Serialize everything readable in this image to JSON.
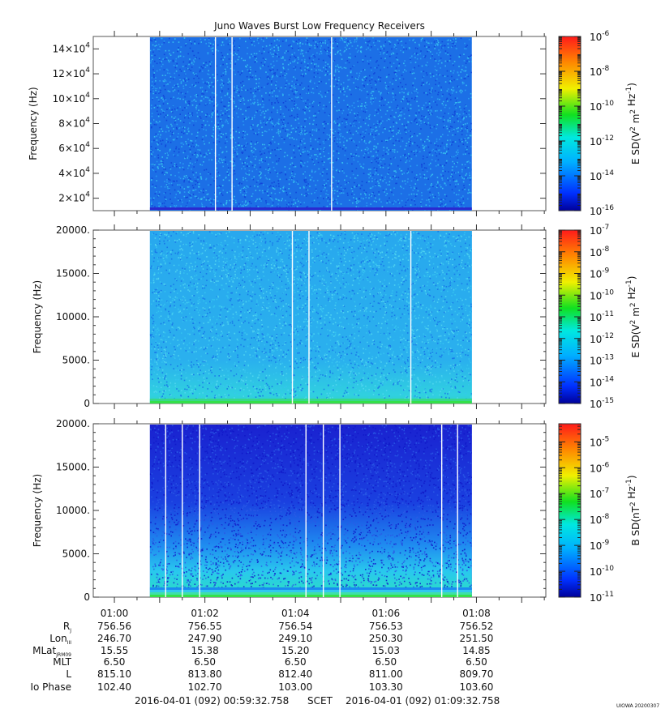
{
  "title": "Juno Waves Burst Low Frequency Receivers",
  "chart_data": [
    {
      "type": "heatmap",
      "ylabel": "Frequency (Hz)",
      "ylim": [
        10000,
        150000
      ],
      "yticks": [
        {
          "value": 20000,
          "mant": "2",
          "exp": "4"
        },
        {
          "value": 40000,
          "mant": "4",
          "exp": "4"
        },
        {
          "value": 60000,
          "mant": "6",
          "exp": "4"
        },
        {
          "value": 80000,
          "mant": "8",
          "exp": "4"
        },
        {
          "value": 100000,
          "mant": "10",
          "exp": "4"
        },
        {
          "value": 120000,
          "mant": "12",
          "exp": "4"
        },
        {
          "value": 140000,
          "mant": "14",
          "exp": "4"
        }
      ],
      "data_span": [
        "01:00:47",
        "01:07:54"
      ],
      "gaps": [
        "01:02:14",
        "01:02:36",
        "01:04:48"
      ],
      "colorbar": {
        "label_base": "E SD(V",
        "label_tail": " Hz",
        "label_neg": "-1",
        "label_unit": " m",
        "label_sq": "2",
        "label_sq2": "2",
        "log_range": [
          -16,
          -6
        ],
        "ticks": [
          -16,
          -14,
          -12,
          -10,
          -8,
          -6
        ]
      },
      "noise": {
        "base": "#1c6fe6",
        "speck": [
          "#0f3fd6",
          "#2aa4f2",
          "#39c9ef"
        ],
        "floor": "#2a2ad0",
        "bottom_band": []
      }
    },
    {
      "type": "heatmap",
      "ylabel": "Frequency (Hz)",
      "ylim": [
        0,
        20000
      ],
      "yticks": [
        {
          "value": 0,
          "label": "0"
        },
        {
          "value": 5000,
          "label": "5000."
        },
        {
          "value": 10000,
          "label": "10000."
        },
        {
          "value": 15000,
          "label": "15000."
        },
        {
          "value": 20000,
          "label": "20000."
        }
      ],
      "data_span": [
        "01:00:47",
        "01:07:54"
      ],
      "gaps": [
        "01:03:56",
        "01:04:18",
        "01:06:33"
      ],
      "colorbar": {
        "label_base": "E SD(V",
        "label_tail": " Hz",
        "label_neg": "-1",
        "label_unit": " m",
        "label_sq": "2",
        "label_sq2": "2",
        "log_range": [
          -15,
          -7
        ],
        "ticks": [
          -15,
          -14,
          -13,
          -12,
          -11,
          -10,
          -9,
          -8,
          -7
        ]
      },
      "noise": {
        "base": "#25a6ee",
        "speck": [
          "#1570e8",
          "#36c6f0",
          "#55d8f0"
        ],
        "floor": "#29c8c8",
        "bottom_band": [
          "#37d88a",
          "#33e04a"
        ]
      }
    },
    {
      "type": "heatmap",
      "ylabel": "Frequency (Hz)",
      "ylim": [
        0,
        20000
      ],
      "yticks": [
        {
          "value": 0,
          "label": "0"
        },
        {
          "value": 5000,
          "label": "5000."
        },
        {
          "value": 10000,
          "label": "10000."
        },
        {
          "value": 15000,
          "label": "15000."
        },
        {
          "value": 20000,
          "label": "20000."
        }
      ],
      "data_span": [
        "01:00:47",
        "01:07:54"
      ],
      "gaps": [
        "01:01:08",
        "01:01:30",
        "01:01:53",
        "01:04:14",
        "01:04:37",
        "01:04:59",
        "01:07:14",
        "01:07:35"
      ],
      "colorbar": {
        "label_base": "B SD(nT",
        "label_tail": " Hz",
        "label_neg": "-1",
        "label_unit": "",
        "label_sq": "2",
        "label_sq2": "",
        "log_range": [
          -11,
          -4.3
        ],
        "ticks": [
          -11,
          -10,
          -9,
          -8,
          -7,
          -6,
          -5
        ]
      },
      "noise": {
        "base": "#1a2fd8",
        "speck": [
          "#0f18c8",
          "#2a5ae6"
        ],
        "floor": "#2adada",
        "bottom_band": [
          "#1a8af0",
          "#30c8f0",
          "#3ee0a8",
          "#35e04a"
        ]
      }
    }
  ],
  "x_axis": {
    "start": "00:59:32",
    "end": "01:09:32",
    "major_ticks": [
      "01:00",
      "01:02",
      "01:04",
      "01:06",
      "01:08"
    ]
  },
  "ephemeris": {
    "rows": [
      {
        "label": "R",
        "sub": "J",
        "values": [
          "756.56",
          "756.55",
          "756.54",
          "756.53",
          "756.52"
        ]
      },
      {
        "label": "Lon",
        "sub": "III",
        "values": [
          "246.70",
          "247.90",
          "249.10",
          "250.30",
          "251.50"
        ]
      },
      {
        "label": "MLat",
        "sub": "JRM09",
        "values": [
          "15.55",
          "15.38",
          "15.20",
          "15.03",
          "14.85"
        ]
      },
      {
        "label": "MLT",
        "sub": "",
        "values": [
          "6.50",
          "6.50",
          "6.50",
          "6.50",
          "6.50"
        ]
      },
      {
        "label": "L",
        "sub": "",
        "values": [
          "815.10",
          "813.80",
          "812.40",
          "811.00",
          "809.70"
        ]
      },
      {
        "label": "Io Phase",
        "sub": "",
        "values": [
          "102.40",
          "102.70",
          "103.00",
          "103.30",
          "103.60"
        ]
      }
    ]
  },
  "footer": {
    "start": "2016-04-01 (092) 00:59:32.758",
    "scet": "SCET",
    "end": "2016-04-01 (092) 01:09:32.758",
    "stamp": "UIOWA 20200307"
  }
}
